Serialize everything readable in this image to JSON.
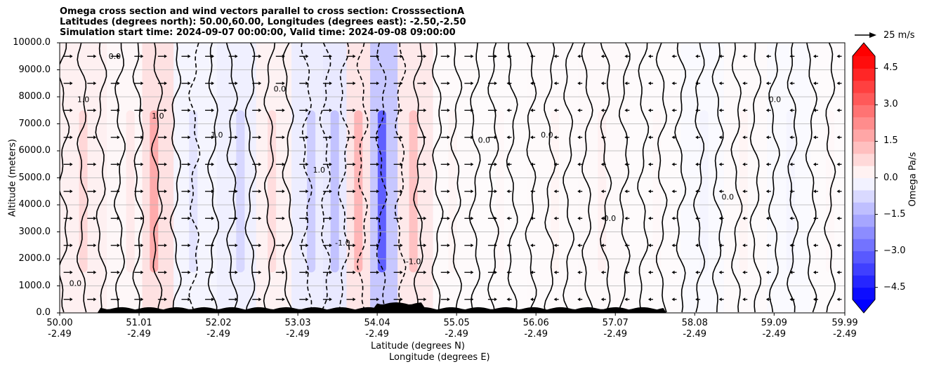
{
  "title_lines": [
    "Omega cross section and wind vectors parallel to cross section: CrosssectionA",
    "Latitudes (degrees north): 50.00,60.00, Longitudes (degrees east): -2.50,-2.50",
    "Simulation start time: 2024-09-07 00:00:00, Valid time: 2024-09-08 09:00:00"
  ],
  "quiver_key": "25 m/s",
  "chart_data": {
    "type": "heatmap",
    "title": "Omega cross section and wind vectors parallel to cross section: CrosssectionA",
    "ylabel": "Altitude (meters)",
    "xlabel_lat": "Latitude (degrees N)",
    "xlabel_lon": "Longitude (degrees E)",
    "ylim": [
      0,
      10000
    ],
    "xlim": [
      50.0,
      59.99
    ],
    "yticks": [
      "0.0",
      "1000.0",
      "2000.0",
      "3000.0",
      "4000.0",
      "5000.0",
      "6000.0",
      "7000.0",
      "8000.0",
      "9000.0",
      "10000.0"
    ],
    "ytick_values": [
      0,
      1000,
      2000,
      3000,
      4000,
      5000,
      6000,
      7000,
      8000,
      9000,
      10000
    ],
    "xticks": [
      {
        "lat": "50.00",
        "lon": "-2.49",
        "value": 50.0
      },
      {
        "lat": "51.01",
        "lon": "-2.49",
        "value": 51.01
      },
      {
        "lat": "52.02",
        "lon": "-2.49",
        "value": 52.02
      },
      {
        "lat": "53.03",
        "lon": "-2.49",
        "value": 53.03
      },
      {
        "lat": "54.04",
        "lon": "-2.49",
        "value": 54.04
      },
      {
        "lat": "55.05",
        "lon": "-2.49",
        "value": 55.05
      },
      {
        "lat": "56.06",
        "lon": "-2.49",
        "value": 56.06
      },
      {
        "lat": "57.07",
        "lon": "-2.49",
        "value": 57.07
      },
      {
        "lat": "58.08",
        "lon": "-2.49",
        "value": 58.08
      },
      {
        "lat": "59.09",
        "lon": "-2.49",
        "value": 59.09
      },
      {
        "lat": "59.99",
        "lon": "-2.49",
        "value": 59.99
      }
    ],
    "grid": true,
    "colorbar": {
      "label": "Omega Pa/s",
      "ticks": [
        "4.5",
        "3.0",
        "1.5",
        "0.0",
        "−1.5",
        "−3.0",
        "−4.5"
      ],
      "tick_values": [
        4.5,
        3.0,
        1.5,
        0.0,
        -1.5,
        -3.0,
        -4.5
      ],
      "range": [
        -5.0,
        5.0
      ],
      "levels": 20,
      "extend": "both",
      "negative_color": "#0000ff",
      "positive_color": "#ff0000"
    },
    "contour_labels": [
      "0.0",
      "1.0",
      "-1.0"
    ],
    "omega_columns": [
      {
        "lat": 50.3,
        "omega": 1.2
      },
      {
        "lat": 50.9,
        "omega": 0.6
      },
      {
        "lat": 51.2,
        "omega": 2.5
      },
      {
        "lat": 51.7,
        "omega": -0.8
      },
      {
        "lat": 52.3,
        "omega": -1.2
      },
      {
        "lat": 52.7,
        "omega": 1.0
      },
      {
        "lat": 53.2,
        "omega": -1.5
      },
      {
        "lat": 53.5,
        "omega": -1.8
      },
      {
        "lat": 53.8,
        "omega": 2.2
      },
      {
        "lat": 54.1,
        "omega": -4.8
      },
      {
        "lat": 54.5,
        "omega": 1.8
      },
      {
        "lat": 55.0,
        "omega": 0.3
      },
      {
        "lat": 55.6,
        "omega": 0.2
      },
      {
        "lat": 56.3,
        "omega": 0.3
      },
      {
        "lat": 56.9,
        "omega": 0.4
      },
      {
        "lat": 57.6,
        "omega": 0.2
      },
      {
        "lat": 58.2,
        "omega": -0.3
      },
      {
        "lat": 58.7,
        "omega": 0.3
      },
      {
        "lat": 59.3,
        "omega": -0.3
      },
      {
        "lat": 59.8,
        "omega": 0.2
      }
    ]
  }
}
